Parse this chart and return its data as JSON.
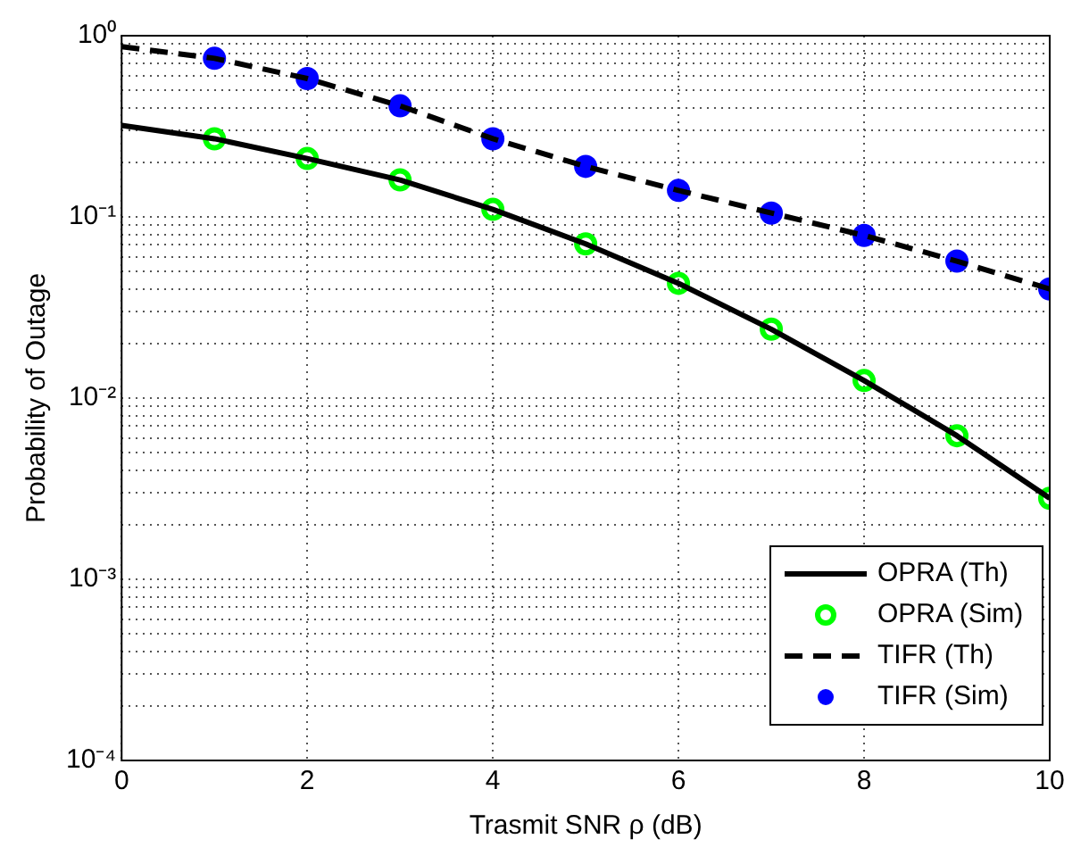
{
  "chart_data": {
    "type": "line",
    "xlabel": "Trasmit SNR ρ (dB)",
    "ylabel": "Probability of Outage",
    "x": [
      0,
      1,
      2,
      3,
      4,
      5,
      6,
      7,
      8,
      9,
      10
    ],
    "series": [
      {
        "name": "OPRA (Th)",
        "color": "#000000",
        "line_style": "solid",
        "marker": "none",
        "values": [
          0.32,
          0.27,
          0.21,
          0.16,
          0.11,
          0.071,
          0.043,
          0.024,
          0.0125,
          0.0062,
          0.0028
        ]
      },
      {
        "name": "OPRA (Sim)",
        "type": "scatter",
        "color": "#00ff00",
        "marker": "circle",
        "x": [
          1,
          2,
          3,
          4,
          5,
          6,
          7,
          8,
          9,
          10
        ],
        "values": [
          0.27,
          0.21,
          0.16,
          0.11,
          0.071,
          0.043,
          0.024,
          0.0125,
          0.0062,
          0.0028
        ]
      },
      {
        "name": "TIFR (Th)",
        "color": "#000000",
        "line_style": "dashed",
        "marker": "none",
        "values": [
          0.87,
          0.75,
          0.58,
          0.41,
          0.27,
          0.19,
          0.14,
          0.105,
          0.079,
          0.057,
          0.04
        ]
      },
      {
        "name": "TIFR (Sim)",
        "type": "scatter",
        "color": "#0000ff",
        "marker": "circle",
        "x": [
          1,
          2,
          3,
          4,
          5,
          6,
          7,
          8,
          9,
          10
        ],
        "values": [
          0.75,
          0.58,
          0.41,
          0.27,
          0.19,
          0.14,
          0.105,
          0.079,
          0.057,
          0.04
        ]
      }
    ],
    "log": "y",
    "grid": true,
    "legend": "bottom right",
    "xlim": [
      0,
      10
    ],
    "xticks": [
      0,
      2,
      4,
      6,
      8,
      10
    ],
    "ylim": [
      0.0001,
      1
    ],
    "yticks": [
      {
        "value": 0.0001,
        "label": "10⁻⁴"
      },
      {
        "value": 0.0002,
        "label": null
      },
      {
        "value": 0.0003,
        "label": null
      },
      {
        "value": 0.0004,
        "label": null
      },
      {
        "value": 0.0005,
        "label": null
      },
      {
        "value": 0.0006,
        "label": null
      },
      {
        "value": 0.0007,
        "label": null
      },
      {
        "value": 0.0008,
        "label": null
      },
      {
        "value": 0.0009,
        "label": null
      },
      {
        "value": 0.001,
        "label": "10⁻³"
      },
      {
        "value": 0.002,
        "label": null
      },
      {
        "value": 0.003,
        "label": null
      },
      {
        "value": 0.004,
        "label": null
      },
      {
        "value": 0.005,
        "label": null
      },
      {
        "value": 0.006,
        "label": null
      },
      {
        "value": 0.007,
        "label": null
      },
      {
        "value": 0.008,
        "label": null
      },
      {
        "value": 0.009,
        "label": null
      },
      {
        "value": 0.01,
        "label": "10⁻²"
      },
      {
        "value": 0.02,
        "label": null
      },
      {
        "value": 0.03,
        "label": null
      },
      {
        "value": 0.04,
        "label": null
      },
      {
        "value": 0.05,
        "label": null
      },
      {
        "value": 0.06,
        "label": null
      },
      {
        "value": 0.07,
        "label": null
      },
      {
        "value": 0.08,
        "label": null
      },
      {
        "value": 0.09,
        "label": null
      },
      {
        "value": 0.1,
        "label": "10⁻¹"
      },
      {
        "value": 0.2,
        "label": null
      },
      {
        "value": 0.3,
        "label": null
      },
      {
        "value": 0.4,
        "label": null
      },
      {
        "value": 0.5,
        "label": null
      },
      {
        "value": 0.6,
        "label": null
      },
      {
        "value": 0.7,
        "label": null
      },
      {
        "value": 0.8,
        "label": null
      },
      {
        "value": 0.9,
        "label": null
      },
      {
        "value": 1,
        "label": "10⁰"
      }
    ]
  }
}
